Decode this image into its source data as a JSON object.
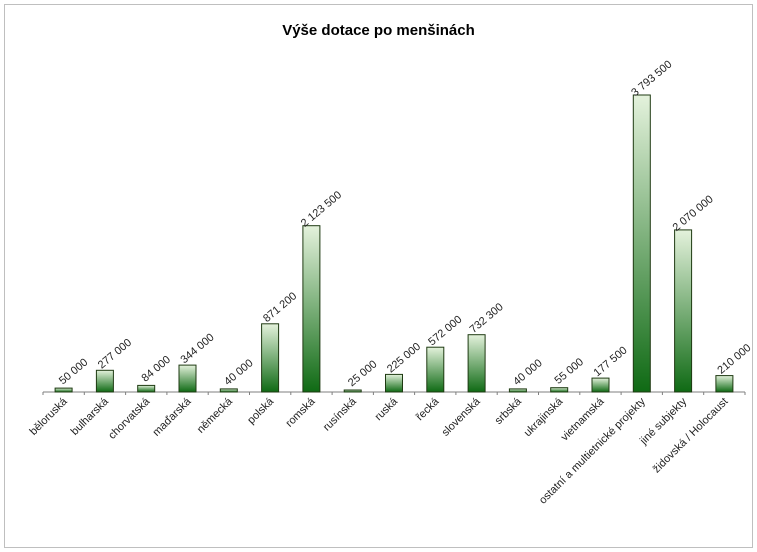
{
  "chart_data": {
    "type": "bar",
    "title": "Výše dotace po menšinách",
    "xlabel": "",
    "ylabel": "",
    "ylim": [
      0,
      4000000
    ],
    "grid": false,
    "legend": "none",
    "categories": [
      "běloruská",
      "bulharská",
      "chorvatská",
      "maďarská",
      "německá",
      "polská",
      "romská",
      "rusínská",
      "ruská",
      "řecká",
      "slovenská",
      "srbská",
      "ukrajinská",
      "vietnamská",
      "ostatní a multietnické projekty",
      "jiné subjekty",
      "židovská / Holocaust"
    ],
    "values": [
      50000,
      277000,
      84000,
      344000,
      40000,
      871200,
      2123500,
      25000,
      225000,
      572000,
      732300,
      40000,
      55000,
      177500,
      3793500,
      2070000,
      210000
    ],
    "labels": [
      "50 000",
      "277 000",
      "84 000",
      "344 000",
      "40 000",
      "871 200",
      "2 123 500",
      "25 000",
      "225 000",
      "572 000",
      "732 300",
      "40 000",
      "55 000",
      "177 500",
      "3 793 500",
      "2 070 000",
      "210 000"
    ],
    "colors": {
      "bar_top": "#e4f2dc",
      "bar_bottom": "#0f6a14",
      "bar_border": "#1e3a12",
      "axis": "#7f7f7f"
    }
  }
}
